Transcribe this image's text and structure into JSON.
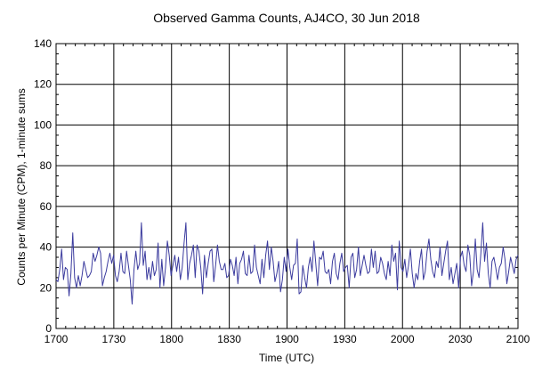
{
  "chart_data": {
    "type": "line",
    "title": "Observed Gamma Counts, AJ4CO, 30 Jun 2018",
    "xlabel": "Time (UTC)",
    "ylabel": "Counts per Minute (CPM), 1-minute sums",
    "xlim": [
      0,
      240
    ],
    "ylim": [
      0,
      140
    ],
    "x_ticks": [
      {
        "label": "1700",
        "minutes": 0
      },
      {
        "label": "1730",
        "minutes": 30
      },
      {
        "label": "1800",
        "minutes": 60
      },
      {
        "label": "1830",
        "minutes": 90
      },
      {
        "label": "1900",
        "minutes": 120
      },
      {
        "label": "1930",
        "minutes": 150
      },
      {
        "label": "2000",
        "minutes": 180
      },
      {
        "label": "2030",
        "minutes": 210
      },
      {
        "label": "2100",
        "minutes": 240
      }
    ],
    "y_ticks": [
      0,
      20,
      40,
      60,
      80,
      100,
      120,
      140
    ],
    "grid": true,
    "line_color": "#3b3b9e",
    "series": [
      {
        "values": [
          24,
          23,
          29,
          39,
          24,
          30,
          29,
          16,
          27,
          47,
          25,
          20,
          26,
          21,
          26,
          33,
          29,
          25,
          26,
          28,
          37,
          33,
          36,
          40,
          37,
          21,
          25,
          28,
          33,
          37,
          32,
          36,
          26,
          23,
          28,
          37,
          28,
          27,
          38,
          31,
          24,
          12,
          29,
          38,
          29,
          32,
          52,
          31,
          38,
          24,
          30,
          24,
          33,
          26,
          29,
          42,
          20,
          34,
          21,
          30,
          43,
          36,
          26,
          31,
          36,
          28,
          35,
          24,
          30,
          42,
          52,
          24,
          32,
          36,
          41,
          25,
          41,
          38,
          30,
          17,
          36,
          25,
          32,
          38,
          39,
          23,
          31,
          41,
          33,
          29,
          29,
          32,
          25,
          26,
          34,
          31,
          26,
          35,
          22,
          32,
          34,
          38,
          27,
          26,
          36,
          27,
          28,
          41,
          30,
          26,
          22,
          34,
          25,
          36,
          43,
          29,
          40,
          33,
          23,
          27,
          33,
          18,
          24,
          35,
          28,
          39,
          30,
          24,
          31,
          32,
          44,
          17,
          18,
          31,
          25,
          20,
          30,
          35,
          28,
          43,
          32,
          21,
          35,
          34,
          38,
          28,
          27,
          29,
          22,
          33,
          37,
          27,
          24,
          32,
          37,
          28,
          30,
          31,
          20,
          35,
          37,
          25,
          29,
          40,
          26,
          31,
          36,
          31,
          27,
          28,
          39,
          30,
          38,
          27,
          28,
          35,
          32,
          27,
          24,
          33,
          26,
          41,
          33,
          37,
          19,
          43,
          30,
          28,
          34,
          25,
          31,
          39,
          27,
          20,
          27,
          24,
          33,
          39,
          24,
          28,
          38,
          44,
          34,
          28,
          25,
          33,
          30,
          40,
          26,
          32,
          38,
          43,
          24,
          30,
          22,
          27,
          32,
          20,
          35,
          38,
          31,
          28,
          41,
          36,
          21,
          28,
          44,
          29,
          25,
          37,
          52,
          33,
          42,
          27,
          20,
          33,
          35,
          30,
          24,
          30,
          32,
          40,
          34,
          22,
          28,
          35,
          31,
          27,
          34,
          36
        ]
      }
    ]
  }
}
